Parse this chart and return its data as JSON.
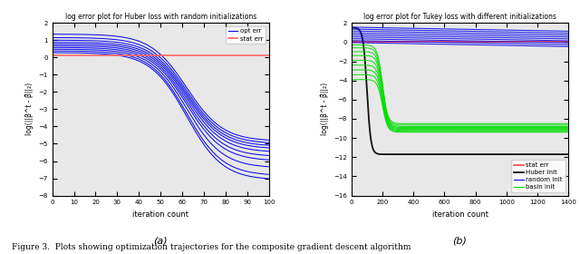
{
  "title_a": "log error plot for Huber loss with random initializations",
  "title_b": "log error plot for Tukey loss with different initializations",
  "xlabel": "iteration count",
  "ylabel": "log(||β^t - β̂||₂)",
  "subplot_a": {
    "xlim": [
      0,
      100
    ],
    "ylim": [
      -8,
      2
    ],
    "yticks": [
      -8,
      -7,
      -6,
      -5,
      -4,
      -3,
      -2,
      -1,
      0,
      1,
      2
    ],
    "xticks": [
      0,
      10,
      20,
      30,
      40,
      50,
      60,
      70,
      80,
      90,
      100
    ],
    "stat_err_level": 0.1,
    "stat_err_color": "#FF6666",
    "opt_color": "#0000EE",
    "n_opt_curves": 10,
    "opt_start_values": [
      1.35,
      1.15,
      1.0,
      0.88,
      0.78,
      0.68,
      0.58,
      0.48,
      0.38,
      0.28
    ],
    "opt_end_values": [
      -4.85,
      -5.0,
      -5.15,
      -5.3,
      -5.5,
      -5.75,
      -6.0,
      -6.4,
      -6.85,
      -7.1
    ],
    "opt_knee_x": [
      62,
      62,
      62,
      62,
      62,
      62,
      62,
      62,
      62,
      62
    ],
    "opt_steepness": [
      0.12,
      0.12,
      0.12,
      0.12,
      0.12,
      0.12,
      0.12,
      0.12,
      0.12,
      0.12
    ],
    "legend_labels": [
      "opt err",
      "stat err"
    ],
    "label_a": "(a)"
  },
  "subplot_b": {
    "xlim": [
      0,
      1400
    ],
    "ylim": [
      -16,
      2
    ],
    "yticks": [
      -16,
      -14,
      -12,
      -10,
      -8,
      -6,
      -4,
      -2,
      0,
      2
    ],
    "xticks": [
      0,
      200,
      400,
      600,
      800,
      1000,
      1200,
      1400
    ],
    "stat_err_level": 0.05,
    "stat_err_color": "#FF4444",
    "huber_init_start": 1.5,
    "huber_init_end": -11.7,
    "huber_knee_x": 100,
    "huber_steepness": 0.08,
    "huber_init_color": "#111111",
    "random_init_color": "#0000EE",
    "basin_init_color": "#00DD00",
    "n_random_curves": 9,
    "random_start_values": [
      1.55,
      1.35,
      1.15,
      0.95,
      0.75,
      0.55,
      0.35,
      0.15,
      -0.05
    ],
    "random_end_slope": -0.0003,
    "n_basin_curves": 9,
    "basin_start_values": [
      -0.3,
      -0.6,
      -1.0,
      -1.4,
      -1.9,
      -2.4,
      -2.9,
      -3.4,
      -3.9
    ],
    "basin_end_values": [
      -8.5,
      -8.65,
      -8.8,
      -8.9,
      -9.0,
      -9.1,
      -9.2,
      -9.3,
      -9.4
    ],
    "basin_knee_x": 200,
    "basin_steepness": 0.06,
    "legend_labels": [
      "stat err",
      "Huber init",
      "random init",
      "basin init"
    ],
    "label_b": "(b)"
  },
  "figure_caption": "Figure 3.  Plots showing optimization trajectories for the composite gradient descent algorithm",
  "bg_color": "#E8E8E8"
}
